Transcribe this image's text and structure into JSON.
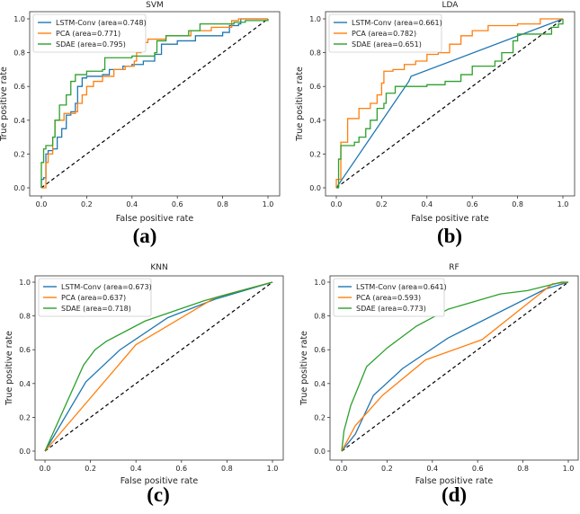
{
  "colors": {
    "LSTM-Conv": "#1f77b4",
    "PCA": "#ff7f0e",
    "SDAE": "#2ca02c",
    "diagonal": "#000000"
  },
  "chart_data": [
    {
      "type": "line",
      "label": "(a)",
      "title": "SVM",
      "xlabel": "False positive rate",
      "ylabel": "True positive rate",
      "xlim": [
        0,
        1
      ],
      "ylim": [
        0,
        1
      ],
      "xticks": [
        "0.0",
        "0.2",
        "0.4",
        "0.6",
        "0.8",
        "1.0"
      ],
      "yticks": [
        "0.0",
        "0.2",
        "0.4",
        "0.6",
        "0.8",
        "1.0"
      ],
      "legend_position": "top-left",
      "grid": false,
      "diagonal": "dashed",
      "series": [
        {
          "name": "LSTM-Conv",
          "legend": "LSTM-Conv (area=0.748)",
          "step": true,
          "x": [
            0,
            0,
            0.01,
            0.02,
            0.03,
            0.05,
            0.07,
            0.09,
            0.11,
            0.13,
            0.15,
            0.16,
            0.18,
            0.2,
            0.27,
            0.3,
            0.36,
            0.4,
            0.45,
            0.5,
            0.53,
            0.6,
            0.68,
            0.8,
            0.83,
            0.87,
            0.88,
            1
          ],
          "y": [
            0,
            0.05,
            0.06,
            0.2,
            0.22,
            0.23,
            0.3,
            0.35,
            0.43,
            0.45,
            0.5,
            0.6,
            0.65,
            0.66,
            0.67,
            0.7,
            0.72,
            0.73,
            0.75,
            0.79,
            0.85,
            0.87,
            0.9,
            0.92,
            0.96,
            0.97,
            1.0,
            1.0
          ]
        },
        {
          "name": "PCA",
          "legend": "PCA (area=0.771)",
          "step": true,
          "x": [
            0,
            0.02,
            0.02,
            0.03,
            0.05,
            0.06,
            0.1,
            0.15,
            0.16,
            0.18,
            0.2,
            0.23,
            0.27,
            0.32,
            0.37,
            0.41,
            0.42,
            0.44,
            0.47,
            0.55,
            0.66,
            0.75,
            0.84,
            0.87,
            1
          ],
          "y": [
            0,
            0.05,
            0.15,
            0.2,
            0.3,
            0.4,
            0.44,
            0.45,
            0.5,
            0.55,
            0.6,
            0.63,
            0.66,
            0.7,
            0.72,
            0.75,
            0.8,
            0.86,
            0.88,
            0.9,
            0.93,
            0.95,
            0.99,
            1.0,
            1.0
          ]
        },
        {
          "name": "SDAE",
          "legend": "SDAE (area=0.795)",
          "step": true,
          "x": [
            0,
            0,
            0.01,
            0.02,
            0.05,
            0.06,
            0.08,
            0.11,
            0.13,
            0.15,
            0.2,
            0.27,
            0.28,
            0.4,
            0.5,
            0.51,
            0.55,
            0.65,
            0.7,
            0.85,
            0.9,
            1
          ],
          "y": [
            0,
            0.15,
            0.23,
            0.25,
            0.3,
            0.4,
            0.49,
            0.55,
            0.63,
            0.67,
            0.69,
            0.7,
            0.77,
            0.78,
            0.8,
            0.87,
            0.9,
            0.93,
            0.97,
            0.98,
            0.99,
            1.0
          ]
        }
      ]
    },
    {
      "type": "line",
      "label": "(b)",
      "title": "LDA",
      "xlabel": "False positive rate",
      "ylabel": "True positive rate",
      "xlim": [
        0,
        1
      ],
      "ylim": [
        0,
        1
      ],
      "xticks": [
        "0.0",
        "0.2",
        "0.4",
        "0.6",
        "0.8",
        "1.0"
      ],
      "yticks": [
        "0.0",
        "0.2",
        "0.4",
        "0.6",
        "0.8",
        "1.0"
      ],
      "legend_position": "top-left",
      "grid": false,
      "diagonal": "dashed",
      "series": [
        {
          "name": "LSTM-Conv",
          "legend": "LSTM-Conv (area=0.661)",
          "step": false,
          "x": [
            0,
            0.32,
            0.33,
            1
          ],
          "y": [
            0,
            0.63,
            0.66,
            1
          ]
        },
        {
          "name": "PCA",
          "legend": "PCA (area=0.782)",
          "step": true,
          "x": [
            0,
            0,
            0.02,
            0.02,
            0.05,
            0.05,
            0.1,
            0.15,
            0.18,
            0.2,
            0.21,
            0.25,
            0.3,
            0.35,
            0.4,
            0.45,
            0.48,
            0.5,
            0.55,
            0.6,
            0.67,
            0.8,
            0.9,
            1
          ],
          "y": [
            0,
            0.05,
            0.05,
            0.27,
            0.27,
            0.41,
            0.47,
            0.5,
            0.55,
            0.62,
            0.69,
            0.7,
            0.73,
            0.75,
            0.79,
            0.8,
            0.8,
            0.85,
            0.9,
            0.93,
            0.96,
            0.97,
            1.0,
            1.0
          ]
        },
        {
          "name": "SDAE",
          "legend": "SDAE (area=0.651)",
          "step": true,
          "x": [
            0,
            0.01,
            0.02,
            0.08,
            0.1,
            0.13,
            0.15,
            0.18,
            0.21,
            0.22,
            0.26,
            0.4,
            0.48,
            0.55,
            0.6,
            0.7,
            0.73,
            0.78,
            0.8,
            0.95,
            0.98,
            1
          ],
          "y": [
            0,
            0.17,
            0.25,
            0.27,
            0.3,
            0.35,
            0.4,
            0.47,
            0.5,
            0.56,
            0.6,
            0.61,
            0.63,
            0.67,
            0.72,
            0.75,
            0.8,
            0.87,
            0.91,
            0.95,
            0.97,
            1.0
          ]
        }
      ]
    },
    {
      "type": "line",
      "label": "(c)",
      "title": "KNN",
      "xlabel": "False positive rate",
      "ylabel": "True positive rate",
      "xlim": [
        0,
        1
      ],
      "ylim": [
        0,
        1
      ],
      "xticks": [
        "0.0",
        "0.2",
        "0.4",
        "0.6",
        "0.8",
        "1.0"
      ],
      "yticks": [
        "0.0",
        "0.2",
        "0.4",
        "0.6",
        "0.8",
        "1.0"
      ],
      "legend_position": "top-left",
      "grid": false,
      "diagonal": "dashed",
      "series": [
        {
          "name": "LSTM-Conv",
          "legend": "LSTM-Conv (area=0.673)",
          "step": false,
          "x": [
            0,
            0.18,
            0.33,
            0.54,
            0.75,
            1
          ],
          "y": [
            0,
            0.41,
            0.6,
            0.79,
            0.9,
            1
          ]
        },
        {
          "name": "PCA",
          "legend": "PCA (area=0.637)",
          "step": false,
          "x": [
            0,
            0.4,
            0.75,
            1
          ],
          "y": [
            0,
            0.63,
            0.91,
            1
          ]
        },
        {
          "name": "SDAE",
          "legend": "SDAE (area=0.718)",
          "step": false,
          "x": [
            0,
            0.17,
            0.22,
            0.27,
            0.44,
            0.7,
            1
          ],
          "y": [
            0,
            0.51,
            0.6,
            0.65,
            0.77,
            0.89,
            1
          ]
        }
      ]
    },
    {
      "type": "line",
      "label": "(d)",
      "title": "RF",
      "xlabel": "False positive rate",
      "ylabel": "True positive rate",
      "xlim": [
        0,
        1
      ],
      "ylim": [
        0,
        1
      ],
      "xticks": [
        "0.0",
        "0.2",
        "0.4",
        "0.6",
        "0.8",
        "1.0"
      ],
      "yticks": [
        "0.0",
        "0.2",
        "0.4",
        "0.6",
        "0.8",
        "1.0"
      ],
      "legend_position": "top-left",
      "grid": false,
      "diagonal": "dashed",
      "series": [
        {
          "name": "LSTM-Conv",
          "legend": "LSTM-Conv (area=0.641)",
          "step": false,
          "x": [
            0,
            0.06,
            0.14,
            0.27,
            0.47,
            0.9,
            1
          ],
          "y": [
            0,
            0.1,
            0.33,
            0.49,
            0.67,
            0.96,
            1
          ]
        },
        {
          "name": "PCA",
          "legend": "PCA (area=0.593)",
          "step": false,
          "x": [
            0,
            0.06,
            0.18,
            0.37,
            0.62,
            0.93,
            1
          ],
          "y": [
            0,
            0.15,
            0.33,
            0.54,
            0.66,
            0.99,
            1
          ]
        },
        {
          "name": "SDAE",
          "legend": "SDAE (area=0.773)",
          "step": false,
          "x": [
            0,
            0.01,
            0.04,
            0.11,
            0.2,
            0.33,
            0.47,
            0.7,
            0.82,
            0.97,
            1
          ],
          "y": [
            0,
            0.12,
            0.27,
            0.5,
            0.61,
            0.74,
            0.84,
            0.93,
            0.95,
            1.0,
            1.0
          ]
        }
      ]
    }
  ]
}
